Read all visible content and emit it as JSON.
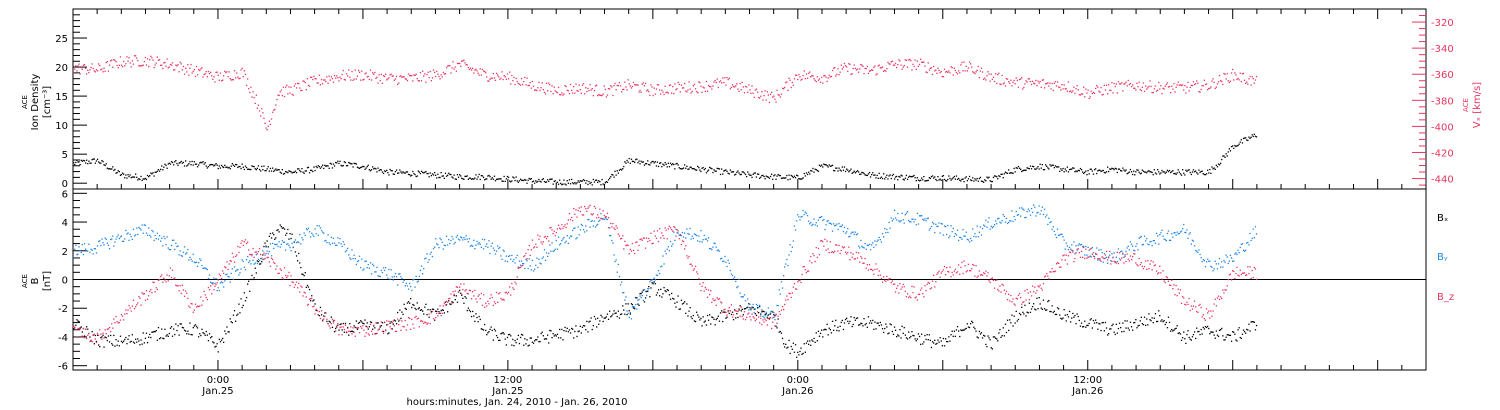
{
  "colors": {
    "axis": "#000000",
    "black_series": "#000000",
    "red_series": "#e8355f",
    "blue_series": "#1f86e6"
  },
  "x_axis": {
    "label": "hours:minutes, Jan. 24, 2010 - Jan. 26, 2010",
    "ticks": [
      {
        "time": "0:00",
        "date": "Jan.25",
        "hours": 24
      },
      {
        "time": "12:00",
        "date": "Jan.25",
        "hours": 36
      },
      {
        "time": "0:00",
        "date": "Jan.26",
        "hours": 48
      },
      {
        "time": "12:00",
        "date": "Jan.26",
        "hours": 60
      }
    ]
  },
  "chart_data": [
    {
      "type": "scatter",
      "panel": "density_velocity",
      "x_range_hours": [
        18,
        74
      ],
      "ylabel_left": [
        "ACE",
        "Ion Density",
        "[cm⁻³]"
      ],
      "ylabel_right": [
        "ACE",
        "Vₓ [km/s]"
      ],
      "ylim_left": [
        -1,
        30
      ],
      "ylim_right": [
        -448,
        -310
      ],
      "yticks_left": [
        "0",
        "5",
        "10",
        "15",
        "20",
        "25"
      ],
      "yticks_right": [
        "-320",
        "-340",
        "-360",
        "-380",
        "-400",
        "-420",
        "-440"
      ],
      "series": [
        {
          "axis": "left",
          "color": "black",
          "x": [
            18.0,
            19.0,
            20.0,
            21.0,
            22.0,
            23.0,
            24.0,
            25.0,
            26.0,
            27.0,
            28.0,
            29.0,
            30.0,
            31.0,
            32.0,
            33.0,
            34.0,
            35.0,
            36.0,
            37.0,
            38.0,
            39.0,
            40.0,
            41.0,
            42.0,
            43.0,
            44.0,
            45.0,
            46.0,
            47.0,
            48.0,
            49.0,
            50.0,
            51.0,
            52.0,
            53.0,
            54.0,
            55.0,
            56.0,
            57.0,
            58.0,
            59.0,
            60.0,
            61.0,
            62.0,
            63.0,
            64.0,
            65.0,
            65.5,
            66.0,
            66.5,
            67.0
          ],
          "y": [
            3.5,
            4.0,
            1.5,
            1.0,
            3.5,
            3.5,
            3.0,
            3.0,
            2.5,
            2.0,
            2.5,
            3.5,
            3.0,
            2.0,
            1.8,
            1.5,
            1.2,
            1.2,
            0.8,
            0.5,
            0.3,
            0.3,
            0.3,
            4.0,
            3.5,
            3.0,
            2.5,
            2.0,
            1.5,
            1.2,
            1.0,
            3.0,
            2.5,
            1.5,
            1.2,
            1.0,
            1.0,
            0.8,
            0.7,
            2.5,
            3.0,
            2.5,
            2.0,
            2.5,
            2.0,
            2.0,
            2.0,
            2.0,
            4.0,
            6.5,
            7.5,
            8.5
          ]
        },
        {
          "axis": "right",
          "color": "red",
          "x": [
            18.0,
            19.0,
            20.0,
            21.0,
            22.0,
            23.0,
            24.0,
            25.0,
            25.7,
            26.0,
            26.5,
            27.0,
            28.0,
            29.0,
            30.0,
            31.0,
            32.0,
            33.0,
            34.0,
            35.0,
            36.0,
            37.0,
            38.0,
            39.0,
            40.0,
            41.0,
            42.0,
            43.0,
            44.0,
            45.0,
            46.0,
            47.0,
            48.0,
            49.0,
            50.0,
            51.0,
            52.0,
            53.0,
            54.0,
            55.0,
            56.0,
            57.0,
            58.0,
            59.0,
            60.0,
            61.0,
            62.0,
            63.0,
            64.0,
            65.0,
            66.0,
            67.0
          ],
          "y": [
            -355,
            -356,
            -350,
            -349,
            -352,
            -357,
            -362,
            -358,
            -385,
            -402,
            -373,
            -372,
            -365,
            -361,
            -360,
            -363,
            -363,
            -360,
            -352,
            -360,
            -362,
            -368,
            -372,
            -370,
            -373,
            -368,
            -372,
            -370,
            -369,
            -366,
            -372,
            -378,
            -360,
            -362,
            -355,
            -357,
            -352,
            -352,
            -358,
            -354,
            -362,
            -366,
            -367,
            -368,
            -374,
            -370,
            -368,
            -370,
            -370,
            -368,
            -360,
            -366
          ]
        }
      ]
    },
    {
      "type": "scatter",
      "panel": "magnetic_field",
      "x_range_hours": [
        18,
        74
      ],
      "ylabel_left": [
        "ACE",
        "B",
        "[nT]"
      ],
      "ylim": [
        -6.3,
        6.3
      ],
      "yticks": [
        "-6",
        "-4",
        "-2",
        "0",
        "2",
        "4",
        "6"
      ],
      "legend": [
        "Bₓ",
        "Bᵧ",
        "B_z"
      ],
      "legend_placement": "right",
      "series": [
        {
          "name": "Bₓ",
          "color": "black",
          "x": [
            18.0,
            19.0,
            20.0,
            21.0,
            22.0,
            23.0,
            24.0,
            25.0,
            26.0,
            26.5,
            27.0,
            28.0,
            29.0,
            30.0,
            31.0,
            32.0,
            33.0,
            34.0,
            35.0,
            36.0,
            37.0,
            38.0,
            39.0,
            40.0,
            41.0,
            42.0,
            43.0,
            44.0,
            45.0,
            46.0,
            47.0,
            47.5,
            48.0,
            49.0,
            50.0,
            51.0,
            52.0,
            53.0,
            54.0,
            55.0,
            56.0,
            57.0,
            58.0,
            59.0,
            60.0,
            61.0,
            62.0,
            63.0,
            64.0,
            65.0,
            66.0,
            67.0
          ],
          "y": [
            -3.0,
            -4.2,
            -4.3,
            -4.0,
            -3.5,
            -3.4,
            -4.6,
            -1.5,
            2.5,
            3.6,
            3.0,
            -2.0,
            -3.5,
            -3.2,
            -3.4,
            -1.5,
            -2.5,
            -1.0,
            -3.5,
            -4.2,
            -4.2,
            -3.8,
            -3.5,
            -2.5,
            -2.0,
            -0.5,
            -1.5,
            -3.0,
            -2.5,
            -2.0,
            -2.5,
            -4.5,
            -5.0,
            -3.5,
            -3.0,
            -3.0,
            -3.5,
            -4.0,
            -4.5,
            -3.0,
            -4.5,
            -2.5,
            -1.5,
            -2.5,
            -3.0,
            -3.5,
            -3.0,
            -2.5,
            -4.0,
            -3.5,
            -4.0,
            -3.0
          ]
        },
        {
          "name": "Bᵧ",
          "color": "blue",
          "x": [
            18.0,
            19.0,
            20.0,
            21.0,
            22.0,
            23.0,
            24.0,
            25.0,
            26.0,
            27.0,
            28.0,
            29.0,
            30.0,
            31.0,
            32.0,
            33.0,
            34.0,
            35.0,
            36.0,
            37.0,
            38.0,
            39.0,
            40.0,
            41.0,
            42.0,
            43.0,
            44.0,
            45.0,
            46.0,
            47.0,
            48.0,
            49.0,
            50.0,
            51.0,
            52.0,
            53.0,
            54.0,
            55.0,
            56.0,
            57.0,
            58.0,
            59.0,
            60.0,
            61.0,
            62.0,
            63.0,
            64.0,
            65.0,
            66.0,
            67.0
          ],
          "y": [
            2.0,
            2.3,
            3.0,
            3.5,
            2.5,
            1.5,
            -0.5,
            1.0,
            2.0,
            2.5,
            3.5,
            2.5,
            1.0,
            0.5,
            -0.5,
            2.5,
            2.8,
            2.5,
            1.5,
            1.0,
            2.5,
            3.5,
            4.5,
            -2.5,
            0.0,
            3.5,
            3.0,
            1.5,
            -2.0,
            -2.5,
            4.5,
            4.0,
            3.5,
            2.0,
            4.5,
            4.2,
            3.5,
            3.0,
            4.0,
            4.5,
            5.0,
            2.5,
            2.0,
            1.5,
            2.5,
            3.0,
            3.5,
            1.0,
            1.5,
            3.5
          ]
        },
        {
          "name": "B_z",
          "color": "red",
          "x": [
            18.0,
            19.0,
            20.0,
            21.0,
            22.0,
            23.0,
            24.0,
            25.0,
            26.0,
            27.0,
            28.0,
            29.0,
            30.0,
            31.0,
            32.0,
            33.0,
            34.0,
            35.0,
            36.0,
            37.0,
            38.0,
            39.0,
            40.0,
            41.0,
            42.0,
            43.0,
            44.0,
            45.0,
            46.0,
            47.0,
            48.0,
            49.0,
            50.0,
            51.0,
            52.0,
            53.0,
            54.0,
            55.0,
            56.0,
            57.0,
            58.0,
            59.0,
            60.0,
            61.0,
            62.0,
            63.0,
            64.0,
            65.0,
            66.0,
            67.0
          ],
          "y": [
            -3.5,
            -4.0,
            -2.5,
            -1.0,
            0.5,
            -2.0,
            0.0,
            2.5,
            1.5,
            0.0,
            -2.0,
            -3.5,
            -3.5,
            -3.2,
            -3.0,
            -2.5,
            -0.5,
            -1.5,
            -1.0,
            2.5,
            3.5,
            5.0,
            4.5,
            2.0,
            3.0,
            3.5,
            -0.5,
            -2.0,
            -2.5,
            -3.0,
            0.0,
            2.5,
            2.0,
            1.0,
            -0.5,
            -1.0,
            0.5,
            1.0,
            0.0,
            -1.5,
            -0.5,
            1.5,
            2.0,
            1.5,
            1.5,
            0.5,
            -1.5,
            -2.5,
            0.5,
            0.5
          ]
        }
      ]
    }
  ]
}
